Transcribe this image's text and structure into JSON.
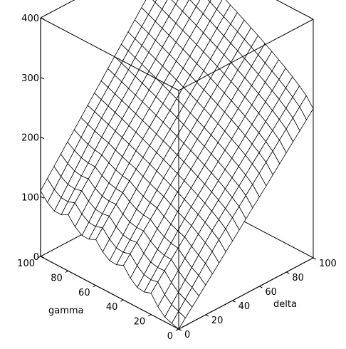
{
  "chart_data": {
    "type": "surface",
    "axes": {
      "gamma": {
        "label": "gamma",
        "range": [
          0,
          100
        ],
        "ticks": [
          0,
          20,
          40,
          60,
          80,
          100
        ]
      },
      "delta": {
        "label": "delta",
        "range": [
          0,
          100
        ],
        "ticks": [
          0,
          20,
          40,
          60,
          80,
          100
        ]
      },
      "z": {
        "label": "",
        "range": [
          0,
          400
        ],
        "ticks": [
          0,
          100,
          200,
          300,
          400
        ]
      }
    },
    "surface": {
      "gamma_values": [
        0,
        5,
        10,
        15,
        20,
        25,
        30,
        35,
        40,
        45,
        50,
        55,
        60,
        65,
        70,
        75,
        80,
        85,
        90,
        95,
        100
      ],
      "delta_values": [
        0,
        5,
        10,
        15,
        20,
        25,
        30,
        35,
        40,
        45,
        50,
        55,
        60,
        65,
        70,
        75,
        80,
        85,
        90,
        95,
        100
      ],
      "z_at_corners": {
        "gamma0_delta0": 0,
        "gamma0_delta100": 300,
        "gamma100_delta0": 100,
        "gamma100_delta100": 400
      },
      "description_of_shape": "z increases with delta and gamma, with a rippled edge along delta = 0"
    },
    "style": {
      "box": "framed",
      "mesh_color": "#000000",
      "surface_color": "#ffffff"
    }
  }
}
